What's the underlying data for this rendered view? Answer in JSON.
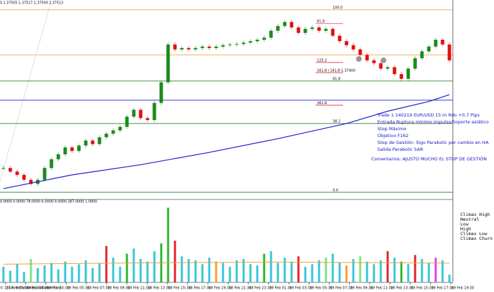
{
  "chart_data": [
    {
      "type": "candlestick",
      "title": "S  1.37505 1.37517 1.37500 1.37513",
      "xlim": [
        -0.5,
        65.5
      ],
      "ylim": [
        1.3688,
        1.3772
      ],
      "up_color": "#1a8a1a",
      "down_color": "#e01010",
      "close": [
        1.3701,
        1.36995,
        1.36981,
        1.3696,
        1.36943,
        1.3696,
        1.3701,
        1.37047,
        1.37068,
        1.37097,
        1.37082,
        1.37105,
        1.37126,
        1.37111,
        1.3714,
        1.37155,
        1.37169,
        1.37184,
        1.37227,
        1.37256,
        1.37221,
        1.37213,
        1.37285,
        1.37372,
        1.37532,
        1.37511,
        1.37517,
        1.37511,
        1.37517,
        1.37523,
        1.37517,
        1.37523,
        1.37529,
        1.37532,
        1.37534,
        1.3754,
        1.37546,
        1.37552,
        1.37561,
        1.3759,
        1.3761,
        1.37627,
        1.37604,
        1.37581,
        1.37598,
        1.37604,
        1.3759,
        1.37598,
        1.37569,
        1.37546,
        1.37529,
        1.37511,
        1.37488,
        1.37465,
        1.37453,
        1.3743,
        1.37436,
        1.37407,
        1.37387,
        1.3743,
        1.37474,
        1.37503,
        1.37523,
        1.37552,
        1.37532,
        1.37465
      ],
      "ma": {
        "color": "#1a1acd",
        "x": [
          0,
          10,
          20,
          30,
          40,
          50,
          56,
          62,
          65
        ],
        "values": [
          1.36923,
          1.36981,
          1.37024,
          1.37076,
          1.37134,
          1.37198,
          1.3725,
          1.37291,
          1.3732
        ]
      },
      "levels": [
        {
          "value": 1.37679,
          "color": "#f0a040",
          "label": "100.0"
        },
        {
          "value": 1.37488,
          "color": "#f0a040"
        },
        {
          "value": 1.37378,
          "color": "#2a7a2a",
          "label": "61.8"
        },
        {
          "value": 1.37297,
          "color": "#1a1acd"
        },
        {
          "value": 1.37198,
          "color": "#2a7a2a",
          "label": "38.2"
        },
        {
          "value": 1.36908,
          "color": "#2a7a2a",
          "label": "0.0"
        }
      ],
      "fib_labels": [
        {
          "value": 1.37621,
          "label": "61.8"
        },
        {
          "value": 1.37456,
          "label": "125.2"
        },
        {
          "value": 1.37413,
          "label": "161.8 | 161.8 1.37400"
        },
        {
          "value": 1.37276,
          "label": "261.8"
        }
      ],
      "annotations": [
        "Trade 1 140219 EUR/USD 15 m Rdo +0,7 Pips",
        "Entrada Ruptura mínimo impulso/Soporte asiático",
        "Stop Máximo",
        "Objetivo F162",
        "Stop de Gestión: Sigo Parabolic por cambio en HA",
        "Salida Parabolic SAR",
        "Comentarios: AJUSTO MUCHO EL STOP DE GESTIÓN"
      ]
    },
    {
      "type": "bar",
      "title": "0.0000 0.0000 78.0000 0.0000 0.0000 287.0000 1.0000",
      "xlim": [
        -0.5,
        65.5
      ],
      "ylim": [
        0,
        300
      ],
      "values": [
        60,
        45,
        70,
        40,
        90,
        55,
        65,
        75,
        50,
        80,
        60,
        70,
        85,
        55,
        75,
        140,
        95,
        60,
        110,
        130,
        90,
        80,
        120,
        150,
        287,
        160,
        100,
        90,
        85,
        70,
        95,
        80,
        75,
        60,
        85,
        90,
        70,
        65,
        110,
        120,
        75,
        95,
        80,
        100,
        60,
        70,
        85,
        95,
        110,
        75,
        65,
        90,
        100,
        80,
        70,
        85,
        120,
        95,
        80,
        70,
        105,
        90,
        75,
        95,
        85,
        30
      ],
      "colors": [
        "#33c5d8",
        "#33c5d8",
        "#33c5d8",
        "#33c5d8",
        "#80e080",
        "#33c5d8",
        "#33c5d8",
        "#33c5d8",
        "#33c5d8",
        "#33c5d8",
        "#33c5d8",
        "#33c5d8",
        "#33c5d8",
        "#33c5d8",
        "#33c5d8",
        "#e0202a",
        "#33c5d8",
        "#33c5d8",
        "#2ab52a",
        "#33c5d8",
        "#33c5d8",
        "#33c5d8",
        "#33c5d8",
        "#2ab52a",
        "#2ab52a",
        "#e0202a",
        "#33c5d8",
        "#33c5d8",
        "#33c5d8",
        "#33c5d8",
        "#33c5d8",
        "#f0a030",
        "#33c5d8",
        "#33c5d8",
        "#33c5d8",
        "#33c5d8",
        "#33c5d8",
        "#33c5d8",
        "#2ab52a",
        "#33c5d8",
        "#33c5d8",
        "#33c5d8",
        "#33c5d8",
        "#e0202a",
        "#33c5d8",
        "#33c5d8",
        "#33c5d8",
        "#80e080",
        "#33c5d8",
        "#33c5d8",
        "#f0a030",
        "#33c5d8",
        "#80e080",
        "#33c5d8",
        "#33c5d8",
        "#33c5d8",
        "#e0202a",
        "#33c5d8",
        "#2ab52a",
        "#33c5d8",
        "#e0202a",
        "#33c5d8",
        "#33c5d8",
        "#e040e0",
        "#33c5d8",
        "#33c5d8"
      ],
      "average": {
        "color": "#f0a030",
        "x": [
          0,
          20,
          40,
          65
        ],
        "values": [
          70,
          75,
          78,
          74
        ]
      },
      "legend": [
        {
          "name": "Climax High",
          "color": "#2ab52a"
        },
        {
          "name": "Neutral",
          "color": "#33c5d8"
        },
        {
          "name": "Low",
          "color": "#d8c020"
        },
        {
          "name": "High",
          "color": "#80e080"
        },
        {
          "name": "Climax Low",
          "color": "#e0202a"
        },
        {
          "name": "Climax Churn",
          "color": "#e040e0"
        }
      ],
      "xticks": [
        {
          "value": 0.3,
          "label": "17 Feb 23:30"
        },
        {
          "value": 3.25,
          "label": "18 Feb 01:30"
        },
        {
          "value": 6.2,
          "label": "18 Feb 03:30"
        },
        {
          "value": 9.15,
          "label": "18 Feb 05:30"
        },
        {
          "value": 12.1,
          "label": "18 Feb 07:30"
        },
        {
          "value": 15.05,
          "label": "18 Feb 09:30"
        },
        {
          "value": 18,
          "label": "18 Feb 11:30"
        },
        {
          "value": 20.95,
          "label": "18 Feb 13:30"
        },
        {
          "value": 23.9,
          "label": "18 Feb 15:30"
        },
        {
          "value": 26.85,
          "label": "18 Feb 17:30"
        },
        {
          "value": 29.8,
          "label": "18 Feb 19:30"
        },
        {
          "value": 32.75,
          "label": "18 Feb 21:30"
        },
        {
          "value": 35.7,
          "label": "18 Feb 23:30"
        },
        {
          "value": 38.65,
          "label": "19 Feb 01:30"
        },
        {
          "value": 41.6,
          "label": "19 Feb 03:30"
        },
        {
          "value": 44.55,
          "label": "19 Feb 05:30"
        },
        {
          "value": 47.5,
          "label": "19 Feb 07:30"
        },
        {
          "value": 50.45,
          "label": "19 Feb 09:30"
        },
        {
          "value": 53.4,
          "label": "19 Feb 11:30"
        },
        {
          "value": 56.35,
          "label": "19 Feb 13:30"
        },
        {
          "value": 59.3,
          "label": "19 Feb 15:30"
        },
        {
          "value": 62.25,
          "label": "19 Feb 17:30"
        },
        {
          "value": 65.2,
          "label": "19 Feb 19:30"
        }
      ],
      "copyright": "© 2014, MetaQuotes Software Corp."
    }
  ]
}
